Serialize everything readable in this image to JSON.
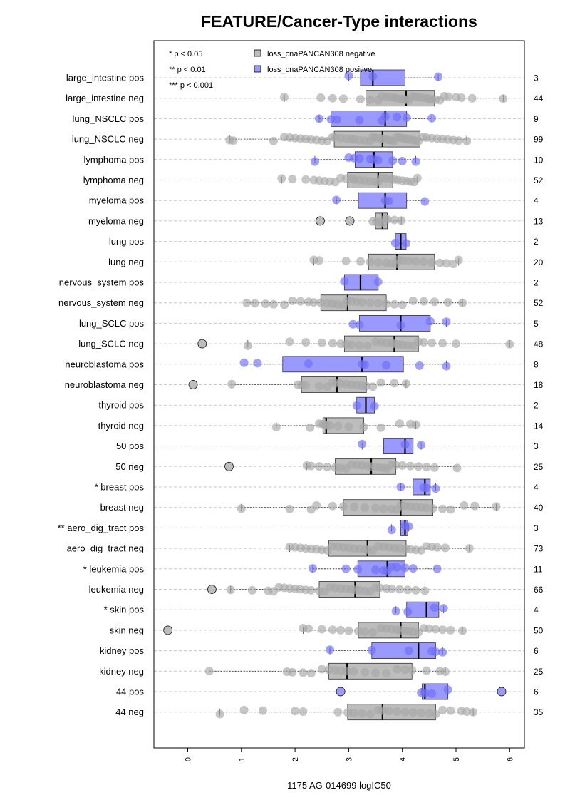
{
  "chart_data": {
    "type": "box",
    "title": "FEATURE/Cancer-Type interactions",
    "xlabel": "1175 AG-014699 logIC50",
    "xlim": [
      -0.6,
      6.1
    ],
    "x_ticks": [
      0,
      1,
      2,
      3,
      4,
      5,
      6
    ],
    "grid": "horizontal dashed",
    "significance_legend": [
      "* p < 0.05",
      "** p < 0.01",
      "*** p < 0.001"
    ],
    "series": [
      {
        "name": "loss_cnaPANCAN308 negative",
        "color": "#bdbdbd"
      },
      {
        "name": "loss_cnaPANCAN308 positive",
        "color": "#9999ff"
      }
    ],
    "groups": [
      {
        "label": "large_intestine pos",
        "n": "3",
        "positive": true,
        "q1": 3.22,
        "median": 3.45,
        "q3": 4.05,
        "wlo": 3.0,
        "whi": 4.67,
        "out": [],
        "pts": [
          3.0,
          3.45,
          4.67
        ]
      },
      {
        "label": "large_intestine neg",
        "n": "44",
        "positive": false,
        "q1": 3.32,
        "median": 4.07,
        "q3": 4.6,
        "wlo": 1.8,
        "whi": 5.88,
        "out": [],
        "pts": [
          1.8,
          2.48,
          2.7,
          2.9,
          3.22,
          3.4,
          3.55,
          3.62,
          3.7,
          3.78,
          3.85,
          3.9,
          3.97,
          4.02,
          4.07,
          4.12,
          4.18,
          4.25,
          4.3,
          4.38,
          4.45,
          4.5,
          4.55,
          4.62,
          4.7,
          4.78,
          4.86,
          5.0,
          5.1,
          5.3,
          5.88
        ]
      },
      {
        "label": "lung_NSCLC pos",
        "n": "9",
        "positive": true,
        "q1": 2.67,
        "median": 3.68,
        "q3": 4.08,
        "wlo": 2.45,
        "whi": 4.55,
        "out": [],
        "pts": [
          2.45,
          2.67,
          2.78,
          3.2,
          3.62,
          3.68,
          3.9,
          4.08,
          4.55
        ]
      },
      {
        "label": "lung_NSCLC neg",
        "n": "99",
        "positive": false,
        "q1": 2.73,
        "median": 3.63,
        "q3": 4.33,
        "wlo": 0.78,
        "whi": 5.2,
        "out": [],
        "pts": [
          0.78,
          0.85,
          1.6,
          1.8,
          1.9,
          2.0,
          2.1,
          2.2,
          2.3,
          2.4,
          2.5,
          2.6,
          2.7,
          2.75,
          2.85,
          2.95,
          3.05,
          3.1,
          3.2,
          3.3,
          3.4,
          3.45,
          3.5,
          3.55,
          3.6,
          3.65,
          3.7,
          3.75,
          3.8,
          3.85,
          3.9,
          3.95,
          4.0,
          4.05,
          4.1,
          4.15,
          4.2,
          4.25,
          4.3,
          4.38,
          4.45,
          4.55,
          4.65,
          4.75,
          4.85,
          4.95,
          5.05,
          5.2
        ]
      },
      {
        "label": "lymphoma pos",
        "n": "10",
        "positive": true,
        "q1": 3.12,
        "median": 3.47,
        "q3": 3.82,
        "wlo": 2.37,
        "whi": 4.25,
        "out": [],
        "pts": [
          2.37,
          3.0,
          3.1,
          3.2,
          3.4,
          3.47,
          3.55,
          3.82,
          4.0,
          4.25
        ]
      },
      {
        "label": "lymphoma neg",
        "n": "52",
        "positive": false,
        "q1": 2.98,
        "median": 3.55,
        "q3": 3.82,
        "wlo": 1.75,
        "whi": 4.28,
        "out": [],
        "pts": [
          1.75,
          1.95,
          2.2,
          2.35,
          2.45,
          2.55,
          2.65,
          2.75,
          2.85,
          2.95,
          3.05,
          3.1,
          3.2,
          3.3,
          3.4,
          3.5,
          3.55,
          3.62,
          3.7,
          3.78,
          3.85,
          3.92,
          4.0,
          4.08,
          4.15,
          4.22,
          4.28
        ]
      },
      {
        "label": "myeloma pos",
        "n": "4",
        "positive": true,
        "q1": 3.18,
        "median": 3.68,
        "q3": 4.08,
        "wlo": 2.77,
        "whi": 4.42,
        "out": [],
        "pts": [
          2.77,
          3.68,
          3.75,
          4.42
        ]
      },
      {
        "label": "myeloma neg",
        "n": "13",
        "positive": false,
        "q1": 3.5,
        "median": 3.63,
        "q3": 3.72,
        "wlo": 3.45,
        "whi": 3.98,
        "out": [
          2.47,
          3.02
        ],
        "pts": [
          3.45,
          3.52,
          3.58,
          3.63,
          3.68,
          3.72,
          3.85,
          3.98
        ]
      },
      {
        "label": "lung pos",
        "n": "2",
        "positive": true,
        "q1": 3.87,
        "median": 3.97,
        "q3": 4.07,
        "wlo": 3.87,
        "whi": 4.07,
        "out": [],
        "pts": [
          3.87,
          4.07
        ]
      },
      {
        "label": "lung neg",
        "n": "20",
        "positive": false,
        "q1": 3.37,
        "median": 3.9,
        "q3": 4.6,
        "wlo": 2.35,
        "whi": 5.05,
        "out": [],
        "pts": [
          2.35,
          2.45,
          2.95,
          3.22,
          3.4,
          3.55,
          3.7,
          3.8,
          3.88,
          3.92,
          4.0,
          4.12,
          4.25,
          4.4,
          4.55,
          4.7,
          4.82,
          4.95,
          5.05
        ]
      },
      {
        "label": "nervous_system pos",
        "n": "2",
        "positive": true,
        "q1": 2.92,
        "median": 3.22,
        "q3": 3.55,
        "wlo": 2.92,
        "whi": 3.55,
        "out": [],
        "pts": [
          2.92,
          3.55
        ]
      },
      {
        "label": "nervous_system neg",
        "n": "52",
        "positive": false,
        "q1": 2.48,
        "median": 2.98,
        "q3": 3.7,
        "wlo": 1.1,
        "whi": 5.12,
        "out": [],
        "pts": [
          1.1,
          1.25,
          1.45,
          1.6,
          1.8,
          1.95,
          2.1,
          2.25,
          2.35,
          2.48,
          2.6,
          2.7,
          2.8,
          2.9,
          2.98,
          3.05,
          3.15,
          3.25,
          3.4,
          3.55,
          3.7,
          3.85,
          4.0,
          4.2,
          4.4,
          4.6,
          4.85,
          5.12
        ]
      },
      {
        "label": "lung_SCLC pos",
        "n": "5",
        "positive": true,
        "q1": 3.2,
        "median": 3.97,
        "q3": 4.52,
        "wlo": 3.08,
        "whi": 4.82,
        "out": [],
        "pts": [
          3.08,
          3.2,
          3.97,
          4.52,
          4.82
        ]
      },
      {
        "label": "lung_SCLC neg",
        "n": "48",
        "positive": false,
        "q1": 2.92,
        "median": 3.85,
        "q3": 4.3,
        "wlo": 1.12,
        "whi": 6.0,
        "out": [
          0.27
        ],
        "pts": [
          1.12,
          1.9,
          2.2,
          2.5,
          2.7,
          2.85,
          2.95,
          3.05,
          3.2,
          3.35,
          3.5,
          3.6,
          3.7,
          3.8,
          3.85,
          3.92,
          4.0,
          4.1,
          4.2,
          4.3,
          4.4,
          4.55,
          4.75,
          5.0,
          6.0
        ]
      },
      {
        "label": "neuroblastoma pos",
        "n": "8",
        "positive": true,
        "q1": 1.77,
        "median": 3.25,
        "q3": 4.02,
        "wlo": 1.05,
        "whi": 4.82,
        "out": [],
        "pts": [
          1.05,
          1.3,
          2.25,
          3.25,
          3.3,
          3.7,
          4.32,
          4.82
        ]
      },
      {
        "label": "neuroblastoma neg",
        "n": "18",
        "positive": false,
        "q1": 2.12,
        "median": 2.78,
        "q3": 3.33,
        "wlo": 0.82,
        "whi": 4.07,
        "out": [
          0.1
        ],
        "pts": [
          0.82,
          2.05,
          2.12,
          2.2,
          2.45,
          2.6,
          2.7,
          2.78,
          2.85,
          2.95,
          3.05,
          3.15,
          3.25,
          3.33,
          3.45,
          3.6,
          3.85,
          4.07
        ]
      },
      {
        "label": "thyroid pos",
        "n": "2",
        "positive": true,
        "q1": 3.15,
        "median": 3.32,
        "q3": 3.48,
        "wlo": 3.15,
        "whi": 3.48,
        "out": [],
        "pts": [
          3.15,
          3.48
        ]
      },
      {
        "label": "thyroid neg",
        "n": "14",
        "positive": false,
        "q1": 2.52,
        "median": 2.58,
        "q3": 3.28,
        "wlo": 1.65,
        "whi": 4.25,
        "out": [],
        "pts": [
          1.65,
          2.28,
          2.45,
          2.52,
          2.55,
          2.58,
          2.65,
          2.8,
          3.0,
          3.28,
          3.6,
          3.95,
          4.15,
          4.25
        ]
      },
      {
        "label": "50 pos",
        "n": "3",
        "positive": true,
        "q1": 3.65,
        "median": 4.05,
        "q3": 4.2,
        "wlo": 3.25,
        "whi": 4.35,
        "out": [],
        "pts": [
          3.25,
          4.05,
          4.35
        ]
      },
      {
        "label": "50 neg",
        "n": "25",
        "positive": false,
        "q1": 2.75,
        "median": 3.42,
        "q3": 3.88,
        "wlo": 2.22,
        "whi": 5.02,
        "out": [
          0.77
        ],
        "pts": [
          2.22,
          2.3,
          2.45,
          2.6,
          2.75,
          2.85,
          2.95,
          3.05,
          3.15,
          3.25,
          3.35,
          3.42,
          3.5,
          3.58,
          3.65,
          3.72,
          3.8,
          3.88,
          4.0,
          4.15,
          4.3,
          4.45,
          4.6,
          5.02
        ]
      },
      {
        "label": "* breast pos",
        "n": "4",
        "positive": true,
        "q1": 4.2,
        "median": 4.42,
        "q3": 4.52,
        "wlo": 3.97,
        "whi": 4.62,
        "out": [],
        "pts": [
          3.97,
          4.4,
          4.45,
          4.62
        ]
      },
      {
        "label": "breast neg",
        "n": "40",
        "positive": false,
        "q1": 2.9,
        "median": 3.97,
        "q3": 4.57,
        "wlo": 1.0,
        "whi": 5.75,
        "out": [],
        "pts": [
          1.0,
          1.9,
          2.3,
          2.4,
          2.7,
          2.9,
          3.1,
          3.3,
          3.5,
          3.65,
          3.8,
          3.9,
          3.97,
          4.05,
          4.15,
          4.25,
          4.35,
          4.45,
          4.57,
          4.75,
          4.9,
          5.15,
          5.35,
          5.75
        ]
      },
      {
        "label": "** aero_dig_tract pos",
        "n": "3",
        "positive": true,
        "q1": 3.97,
        "median": 4.05,
        "q3": 4.1,
        "wlo": 3.8,
        "whi": 4.12,
        "out": [],
        "pts": [
          3.8,
          4.05,
          4.12
        ]
      },
      {
        "label": "aero_dig_tract neg",
        "n": "73",
        "positive": false,
        "q1": 2.63,
        "median": 3.35,
        "q3": 4.07,
        "wlo": 1.9,
        "whi": 5.25,
        "out": [],
        "pts": [
          1.9,
          2.0,
          2.1,
          2.2,
          2.3,
          2.4,
          2.5,
          2.6,
          2.7,
          2.8,
          2.9,
          3.0,
          3.1,
          3.2,
          3.3,
          3.35,
          3.45,
          3.55,
          3.65,
          3.75,
          3.85,
          3.95,
          4.07,
          4.15,
          4.25,
          4.35,
          4.45,
          4.55,
          4.65,
          4.8,
          5.25
        ]
      },
      {
        "label": "* leukemia pos",
        "n": "11",
        "positive": true,
        "q1": 3.17,
        "median": 3.72,
        "q3": 4.05,
        "wlo": 2.33,
        "whi": 4.65,
        "out": [],
        "pts": [
          2.33,
          2.95,
          3.17,
          3.5,
          3.65,
          3.72,
          3.8,
          3.9,
          4.05,
          4.2,
          4.65
        ]
      },
      {
        "label": "leukemia neg",
        "n": "66",
        "positive": false,
        "q1": 2.45,
        "median": 3.12,
        "q3": 3.58,
        "wlo": 0.8,
        "whi": 4.42,
        "out": [
          0.45
        ],
        "pts": [
          0.8,
          1.2,
          1.5,
          1.6,
          1.7,
          1.8,
          1.9,
          2.0,
          2.1,
          2.2,
          2.3,
          2.45,
          2.55,
          2.65,
          2.75,
          2.85,
          2.95,
          3.05,
          3.12,
          3.2,
          3.3,
          3.4,
          3.5,
          3.58,
          3.7,
          3.8,
          3.95,
          4.1,
          4.25,
          4.42
        ]
      },
      {
        "label": "* skin pos",
        "n": "4",
        "positive": true,
        "q1": 4.08,
        "median": 4.45,
        "q3": 4.68,
        "wlo": 3.88,
        "whi": 4.77,
        "out": [],
        "pts": [
          3.88,
          4.1,
          4.6,
          4.77
        ]
      },
      {
        "label": "skin neg",
        "n": "50",
        "positive": false,
        "q1": 3.18,
        "median": 3.97,
        "q3": 4.3,
        "wlo": 2.15,
        "whi": 5.12,
        "out": [
          -0.37
        ],
        "pts": [
          2.15,
          2.25,
          2.5,
          2.7,
          2.85,
          3.0,
          3.18,
          3.3,
          3.45,
          3.6,
          3.7,
          3.8,
          3.9,
          3.97,
          4.05,
          4.12,
          4.2,
          4.3,
          4.4,
          4.5,
          4.62,
          4.75,
          4.9,
          5.12
        ]
      },
      {
        "label": "kidney pos",
        "n": "6",
        "positive": true,
        "q1": 3.43,
        "median": 4.3,
        "q3": 4.62,
        "wlo": 2.65,
        "whi": 4.75,
        "out": [],
        "pts": [
          2.65,
          3.43,
          4.12,
          4.55,
          4.62,
          4.75
        ]
      },
      {
        "label": "kidney neg",
        "n": "25",
        "positive": false,
        "q1": 2.63,
        "median": 2.97,
        "q3": 4.18,
        "wlo": 0.4,
        "whi": 4.8,
        "out": [],
        "pts": [
          0.4,
          1.85,
          1.95,
          2.15,
          2.3,
          2.5,
          2.63,
          2.75,
          2.85,
          2.97,
          3.1,
          3.3,
          3.5,
          3.7,
          3.9,
          4.05,
          4.18,
          4.45,
          4.7,
          4.8
        ]
      },
      {
        "label": "44 pos",
        "n": "6",
        "positive": true,
        "q1": 4.37,
        "median": 4.42,
        "q3": 4.85,
        "wlo": 4.35,
        "whi": 4.85,
        "out": [
          2.85,
          5.85
        ],
        "pts": [
          4.35,
          4.42,
          4.55,
          4.85
        ]
      },
      {
        "label": "44 neg",
        "n": "35",
        "positive": false,
        "q1": 2.98,
        "median": 3.63,
        "q3": 4.62,
        "wlo": 0.6,
        "whi": 5.32,
        "out": [],
        "pts": [
          0.6,
          1.05,
          1.4,
          2.0,
          2.15,
          2.8,
          2.98,
          3.1,
          3.25,
          3.4,
          3.55,
          3.63,
          3.75,
          3.9,
          4.05,
          4.2,
          4.35,
          4.5,
          4.62,
          4.75,
          4.9,
          5.1,
          5.2,
          5.32
        ]
      }
    ]
  }
}
